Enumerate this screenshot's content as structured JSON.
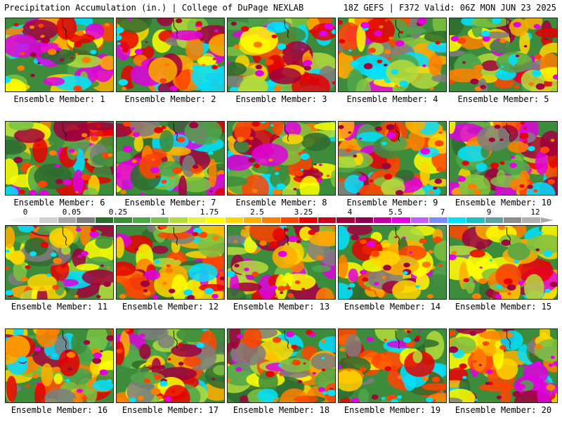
{
  "header": {
    "left": "Precipitation Accumulation (in.) | College of DuPage NEXLAB",
    "right": "18Z GEFS | F372 Valid: 06Z MON JUN 23 2025"
  },
  "members": [
    {
      "label": "Ensemble Member: 1"
    },
    {
      "label": "Ensemble Member: 2"
    },
    {
      "label": "Ensemble Member: 3"
    },
    {
      "label": "Ensemble Member: 4"
    },
    {
      "label": "Ensemble Member: 5"
    },
    {
      "label": "Ensemble Member: 6"
    },
    {
      "label": "Ensemble Member: 7"
    },
    {
      "label": "Ensemble Member: 8"
    },
    {
      "label": "Ensemble Member: 9"
    },
    {
      "label": "Ensemble Member: 10"
    },
    {
      "label": "Ensemble Member: 11"
    },
    {
      "label": "Ensemble Member: 12"
    },
    {
      "label": "Ensemble Member: 13"
    },
    {
      "label": "Ensemble Member: 14"
    },
    {
      "label": "Ensemble Member: 15"
    },
    {
      "label": "Ensemble Member: 16"
    },
    {
      "label": "Ensemble Member: 17"
    },
    {
      "label": "Ensemble Member: 18"
    },
    {
      "label": "Ensemble Member: 19"
    },
    {
      "label": "Ensemble Member: 20"
    }
  ],
  "colorbar": {
    "labels": [
      "0",
      "0.05",
      "0.25",
      "1",
      "1.75",
      "2.5",
      "3.25",
      "4",
      "5.5",
      "7",
      "9",
      "12"
    ],
    "colors": [
      "#f2f2f2",
      "#d0d0d0",
      "#a8a8a8",
      "#7e7e7e",
      "#2e6b2e",
      "#3c8c3c",
      "#4fa64a",
      "#7cc242",
      "#b3dc3c",
      "#e8f23a",
      "#ffff00",
      "#ffd700",
      "#ffae00",
      "#ff8000",
      "#ff4500",
      "#e60000",
      "#c8001e",
      "#a0003c",
      "#8c0050",
      "#c000a0",
      "#e000e0",
      "#c060ff",
      "#7a8cff",
      "#00e0ff",
      "#20c0c0",
      "#60a0a0",
      "#8c8c8c",
      "#b0b0b0"
    ]
  }
}
